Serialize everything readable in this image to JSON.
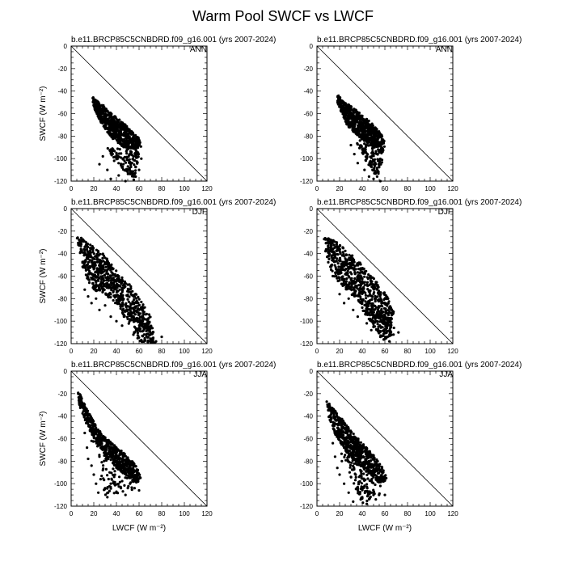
{
  "figure": {
    "title": "Warm Pool SWCF vs LWCF"
  },
  "chart_data": [
    {
      "type": "scatter",
      "id": "p1",
      "title": "b.e11.BRCP85C5CNBDRD.f09_g16.001 (yrs 2007-2024)",
      "season": "ANN",
      "xlabel": "",
      "ylabel": "SWCF",
      "ylabel_unit": "(W m⁻²)",
      "xlim": [
        0,
        120
      ],
      "ylim": [
        -120,
        0
      ],
      "xticks": [
        "0",
        "20",
        "40",
        "60",
        "80",
        "100",
        "120"
      ],
      "yticks": [
        "0",
        "-20",
        "-40",
        "-60",
        "-80",
        "-100",
        "-120"
      ],
      "reference_line": "y = -x",
      "cloud": [
        [
          18,
          -42
        ],
        [
          22,
          -48
        ],
        [
          28,
          -52
        ],
        [
          36,
          -60
        ],
        [
          46,
          -68
        ],
        [
          60,
          -82
        ],
        [
          62,
          -90
        ],
        [
          56,
          -92
        ],
        [
          46,
          -90
        ],
        [
          38,
          -84
        ],
        [
          30,
          -74
        ],
        [
          24,
          -64
        ],
        [
          20,
          -54
        ]
      ],
      "tail": [
        [
          30,
          -90
        ],
        [
          45,
          -110
        ],
        [
          55,
          -120
        ],
        [
          62,
          -92
        ]
      ],
      "points": [
        [
          25,
          -105
        ],
        [
          28,
          -98
        ],
        [
          32,
          -110
        ],
        [
          35,
          -118
        ],
        [
          38,
          -102
        ],
        [
          40,
          -95
        ],
        [
          42,
          -115
        ],
        [
          45,
          -108
        ],
        [
          48,
          -120
        ],
        [
          50,
          -112
        ],
        [
          52,
          -104
        ],
        [
          55,
          -98
        ],
        [
          57,
          -116
        ],
        [
          60,
          -110
        ],
        [
          62,
          -100
        ],
        [
          45,
          -88
        ],
        [
          35,
          -92
        ],
        [
          58,
          -94
        ]
      ]
    },
    {
      "type": "scatter",
      "id": "p2",
      "title": "b.e11.BRCP85C5CNBDRD.f09_g16.001 (yrs 2007-2024)",
      "season": "ANN",
      "xlabel": "",
      "ylabel": "",
      "ylabel_unit": "",
      "xlim": [
        0,
        120
      ],
      "ylim": [
        -120,
        0
      ],
      "xticks": [
        "0",
        "20",
        "40",
        "60",
        "80",
        "100",
        "120"
      ],
      "yticks": [
        "0",
        "-20",
        "-40",
        "-60",
        "-80",
        "-100",
        "-120"
      ],
      "reference_line": "y = -x",
      "cloud": [
        [
          18,
          -42
        ],
        [
          22,
          -48
        ],
        [
          28,
          -52
        ],
        [
          36,
          -58
        ],
        [
          46,
          -66
        ],
        [
          56,
          -76
        ],
        [
          60,
          -86
        ],
        [
          54,
          -90
        ],
        [
          44,
          -86
        ],
        [
          34,
          -78
        ],
        [
          26,
          -70
        ],
        [
          22,
          -60
        ],
        [
          18,
          -50
        ]
      ],
      "tail": [
        [
          35,
          -86
        ],
        [
          48,
          -112
        ],
        [
          55,
          -118
        ],
        [
          60,
          -88
        ]
      ],
      "points": [
        [
          30,
          -88
        ],
        [
          33,
          -96
        ],
        [
          36,
          -104
        ],
        [
          40,
          -92
        ],
        [
          42,
          -110
        ],
        [
          44,
          -100
        ],
        [
          46,
          -116
        ],
        [
          48,
          -106
        ],
        [
          50,
          -96
        ],
        [
          52,
          -112
        ],
        [
          54,
          -102
        ],
        [
          56,
          -120
        ],
        [
          58,
          -94
        ],
        [
          50,
          -118
        ],
        [
          38,
          -84
        ]
      ]
    },
    {
      "type": "scatter",
      "id": "p3",
      "title": "b.e11.BRCP85C5CNBDRD.f09_g16.001 (yrs 2007-2024)",
      "season": "DJF",
      "xlabel": "",
      "ylabel": "SWCF",
      "ylabel_unit": "(W m⁻²)",
      "xlim": [
        0,
        120
      ],
      "ylim": [
        -120,
        0
      ],
      "xticks": [
        "0",
        "20",
        "40",
        "60",
        "80",
        "100",
        "120"
      ],
      "yticks": [
        "0",
        "-20",
        "-40",
        "-60",
        "-80",
        "-100",
        "-120"
      ],
      "reference_line": "y = -x",
      "cloud": [
        [
          5,
          -25
        ],
        [
          10,
          -26
        ],
        [
          18,
          -32
        ],
        [
          28,
          -40
        ],
        [
          40,
          -55
        ],
        [
          52,
          -68
        ],
        [
          62,
          -82
        ],
        [
          70,
          -96
        ],
        [
          72,
          -106
        ],
        [
          66,
          -110
        ],
        [
          56,
          -100
        ],
        [
          44,
          -88
        ],
        [
          32,
          -78
        ],
        [
          20,
          -72
        ],
        [
          12,
          -60
        ],
        [
          8,
          -42
        ]
      ],
      "tail": [
        [
          40,
          -86
        ],
        [
          60,
          -118
        ],
        [
          75,
          -120
        ],
        [
          72,
          -106
        ]
      ],
      "points": [
        [
          12,
          -72
        ],
        [
          15,
          -78
        ],
        [
          18,
          -84
        ],
        [
          22,
          -80
        ],
        [
          25,
          -90
        ],
        [
          30,
          -86
        ],
        [
          35,
          -96
        ],
        [
          40,
          -100
        ],
        [
          45,
          -104
        ],
        [
          50,
          -98
        ],
        [
          55,
          -112
        ],
        [
          60,
          -108
        ],
        [
          65,
          -116
        ],
        [
          70,
          -112
        ],
        [
          75,
          -118
        ],
        [
          80,
          -114
        ],
        [
          68,
          -102
        ]
      ]
    },
    {
      "type": "scatter",
      "id": "p4",
      "title": "b.e11.BRCP85C5CNBDRD.f09_g16.001 (yrs 2007-2024)",
      "season": "DJF",
      "xlabel": "",
      "ylabel": "",
      "ylabel_unit": "",
      "xlim": [
        0,
        120
      ],
      "ylim": [
        -120,
        0
      ],
      "xticks": [
        "0",
        "20",
        "40",
        "60",
        "80",
        "100",
        "120"
      ],
      "yticks": [
        "0",
        "-20",
        "-40",
        "-60",
        "-80",
        "-100",
        "-120"
      ],
      "reference_line": "y = -x",
      "cloud": [
        [
          5,
          -25
        ],
        [
          10,
          -26
        ],
        [
          18,
          -30
        ],
        [
          28,
          -38
        ],
        [
          40,
          -50
        ],
        [
          52,
          -64
        ],
        [
          62,
          -78
        ],
        [
          68,
          -92
        ],
        [
          66,
          -104
        ],
        [
          58,
          -104
        ],
        [
          48,
          -94
        ],
        [
          36,
          -82
        ],
        [
          24,
          -70
        ],
        [
          14,
          -60
        ],
        [
          8,
          -42
        ]
      ],
      "tail": [
        [
          40,
          -90
        ],
        [
          58,
          -118
        ],
        [
          68,
          -112
        ],
        [
          64,
          -96
        ]
      ],
      "points": [
        [
          20,
          -76
        ],
        [
          24,
          -84
        ],
        [
          28,
          -80
        ],
        [
          32,
          -90
        ],
        [
          36,
          -96
        ],
        [
          40,
          -88
        ],
        [
          44,
          -102
        ],
        [
          48,
          -108
        ],
        [
          52,
          -100
        ],
        [
          56,
          -114
        ],
        [
          60,
          -110
        ],
        [
          64,
          -118
        ],
        [
          68,
          -106
        ],
        [
          72,
          -110
        ],
        [
          66,
          -98
        ]
      ]
    },
    {
      "type": "scatter",
      "id": "p5",
      "title": "b.e11.BRCP85C5CNBDRD.f09_g16.001 (yrs 2007-2024)",
      "season": "JJA",
      "xlabel": "LWCF",
      "xlabel_unit": "(W m⁻²)",
      "ylabel": "SWCF",
      "ylabel_unit": "(W m⁻²)",
      "xlim": [
        0,
        120
      ],
      "ylim": [
        -120,
        0
      ],
      "xticks": [
        "0",
        "20",
        "40",
        "60",
        "80",
        "100",
        "120"
      ],
      "yticks": [
        "0",
        "-20",
        "-40",
        "-60",
        "-80",
        "-100",
        "-120"
      ],
      "reference_line": "y = -x",
      "cloud": [
        [
          6,
          -18
        ],
        [
          9,
          -22
        ],
        [
          14,
          -34
        ],
        [
          24,
          -52
        ],
        [
          36,
          -64
        ],
        [
          46,
          -72
        ],
        [
          56,
          -82
        ],
        [
          62,
          -94
        ],
        [
          58,
          -100
        ],
        [
          50,
          -96
        ],
        [
          40,
          -86
        ],
        [
          30,
          -74
        ],
        [
          20,
          -60
        ],
        [
          12,
          -44
        ],
        [
          7,
          -30
        ]
      ],
      "tail": [
        [
          14,
          -40
        ],
        [
          30,
          -110
        ],
        [
          55,
          -108
        ],
        [
          60,
          -96
        ]
      ],
      "points": [
        [
          12,
          -55
        ],
        [
          14,
          -68
        ],
        [
          15,
          -78
        ],
        [
          18,
          -84
        ],
        [
          20,
          -92
        ],
        [
          22,
          -100
        ],
        [
          24,
          -108
        ],
        [
          26,
          -96
        ],
        [
          28,
          -88
        ],
        [
          30,
          -104
        ],
        [
          32,
          -112
        ],
        [
          35,
          -100
        ],
        [
          38,
          -94
        ],
        [
          40,
          -108
        ],
        [
          44,
          -104
        ],
        [
          48,
          -110
        ],
        [
          52,
          -100
        ],
        [
          56,
          -104
        ],
        [
          60,
          -106
        ],
        [
          18,
          -62
        ],
        [
          25,
          -76
        ],
        [
          34,
          -90
        ]
      ]
    },
    {
      "type": "scatter",
      "id": "p6",
      "title": "b.e11.BRCP85C5CNBDRD.f09_g16.001 (yrs 2007-2024)",
      "season": "JJA",
      "xlabel": "LWCF",
      "xlabel_unit": "(W m⁻²)",
      "ylabel": "",
      "ylabel_unit": "",
      "xlim": [
        0,
        120
      ],
      "ylim": [
        -120,
        0
      ],
      "xticks": [
        "0",
        "20",
        "40",
        "60",
        "80",
        "100",
        "120"
      ],
      "yticks": [
        "0",
        "-20",
        "-40",
        "-60",
        "-80",
        "-100",
        "-120"
      ],
      "reference_line": "y = -x",
      "cloud": [
        [
          8,
          -22
        ],
        [
          12,
          -30
        ],
        [
          20,
          -40
        ],
        [
          30,
          -52
        ],
        [
          40,
          -64
        ],
        [
          50,
          -74
        ],
        [
          58,
          -86
        ],
        [
          62,
          -96
        ],
        [
          56,
          -100
        ],
        [
          46,
          -92
        ],
        [
          36,
          -82
        ],
        [
          26,
          -72
        ],
        [
          16,
          -56
        ],
        [
          10,
          -40
        ]
      ],
      "tail": [
        [
          20,
          -70
        ],
        [
          40,
          -118
        ],
        [
          56,
          -110
        ],
        [
          60,
          -98
        ]
      ],
      "points": [
        [
          14,
          -64
        ],
        [
          16,
          -76
        ],
        [
          18,
          -86
        ],
        [
          20,
          -92
        ],
        [
          24,
          -100
        ],
        [
          28,
          -108
        ],
        [
          32,
          -116
        ],
        [
          36,
          -104
        ],
        [
          40,
          -112
        ],
        [
          44,
          -118
        ],
        [
          48,
          -108
        ],
        [
          52,
          -114
        ],
        [
          56,
          -102
        ],
        [
          60,
          -110
        ],
        [
          22,
          -80
        ],
        [
          30,
          -94
        ],
        [
          38,
          -98
        ]
      ]
    }
  ]
}
